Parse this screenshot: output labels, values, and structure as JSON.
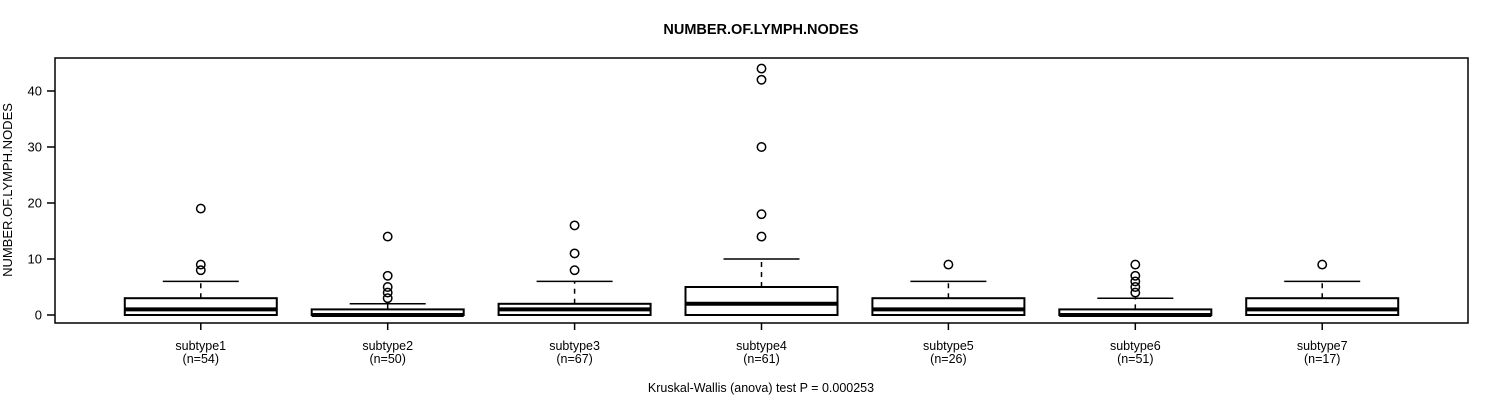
{
  "title": "NUMBER.OF.LYMPH.NODES",
  "footer": "Kruskal-Wallis (anova) test P = 0.000253",
  "chart_data": {
    "type": "boxplot",
    "title": "NUMBER.OF.LYMPH.NODES",
    "xlabel": "",
    "ylabel": "NUMBER.OF.LYMPH.NODES",
    "yticks": [
      0,
      10,
      20,
      30,
      40
    ],
    "ylim": [
      -1.5,
      46
    ],
    "grid": false,
    "legend": null,
    "annotation": "Kruskal-Wallis (anova) test P = 0.000253",
    "box_fill_color": "#ffffff",
    "box_stroke_color": "#000000",
    "groups": [
      {
        "label": "subtype1",
        "sublabel": "(n=54)",
        "n": 54,
        "whisker_low": 0,
        "q1": 0,
        "median": 1,
        "q3": 3,
        "whisker_high": 6,
        "outliers": [
          8,
          9,
          19
        ]
      },
      {
        "label": "subtype2",
        "sublabel": "(n=50)",
        "n": 50,
        "whisker_low": 0,
        "q1": 0,
        "median": 0,
        "q3": 1,
        "whisker_high": 2,
        "outliers": [
          3,
          4,
          5,
          7,
          14
        ]
      },
      {
        "label": "subtype3",
        "sublabel": "(n=67)",
        "n": 67,
        "whisker_low": 0,
        "q1": 0,
        "median": 1,
        "q3": 2,
        "whisker_high": 6,
        "outliers": [
          8,
          11,
          16
        ]
      },
      {
        "label": "subtype4",
        "sublabel": "(n=61)",
        "n": 61,
        "whisker_low": 0,
        "q1": 0,
        "median": 2,
        "q3": 5,
        "whisker_high": 10,
        "outliers": [
          14,
          18,
          30,
          42,
          44
        ]
      },
      {
        "label": "subtype5",
        "sublabel": "(n=26)",
        "n": 26,
        "whisker_low": 0,
        "q1": 0,
        "median": 1,
        "q3": 3,
        "whisker_high": 6,
        "outliers": [
          9
        ]
      },
      {
        "label": "subtype6",
        "sublabel": "(n=51)",
        "n": 51,
        "whisker_low": 0,
        "q1": 0,
        "median": 0,
        "q3": 1,
        "whisker_high": 3,
        "outliers": [
          4,
          5,
          6,
          7,
          9
        ]
      },
      {
        "label": "subtype7",
        "sublabel": "(n=17)",
        "n": 17,
        "whisker_low": 0,
        "q1": 0,
        "median": 1,
        "q3": 3,
        "whisker_high": 6,
        "outliers": [
          9
        ]
      }
    ]
  }
}
